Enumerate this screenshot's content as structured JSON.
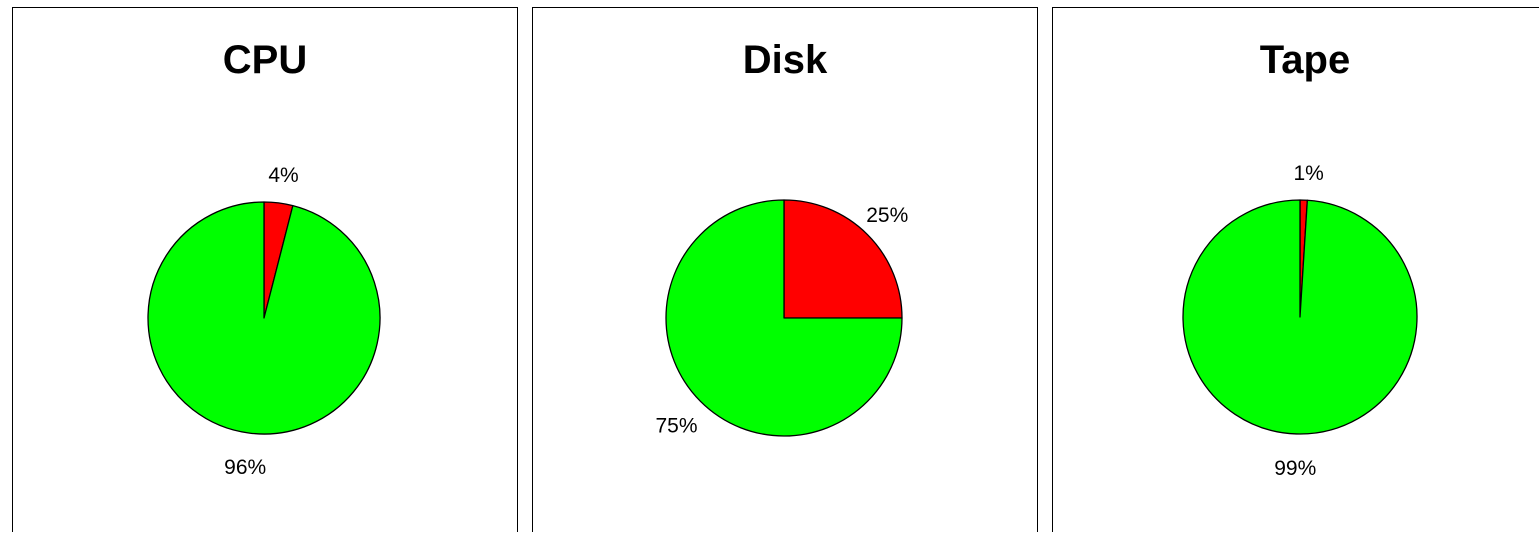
{
  "colors": {
    "slice_small": "#ff0000",
    "slice_large": "#00ff00",
    "outline": "#000000"
  },
  "chart_data": [
    {
      "type": "pie",
      "title": "CPU",
      "slices": [
        {
          "value": 4,
          "label": "4%",
          "color": "#ff0000"
        },
        {
          "value": 96,
          "label": "96%",
          "color": "#00ff00"
        }
      ]
    },
    {
      "type": "pie",
      "title": "Disk",
      "slices": [
        {
          "value": 25,
          "label": "25%",
          "color": "#ff0000"
        },
        {
          "value": 75,
          "label": "75%",
          "color": "#00ff00"
        }
      ]
    },
    {
      "type": "pie",
      "title": "Tape",
      "slices": [
        {
          "value": 1,
          "label": "1%",
          "color": "#ff0000"
        },
        {
          "value": 99,
          "label": "99%",
          "color": "#00ff00"
        }
      ]
    }
  ]
}
